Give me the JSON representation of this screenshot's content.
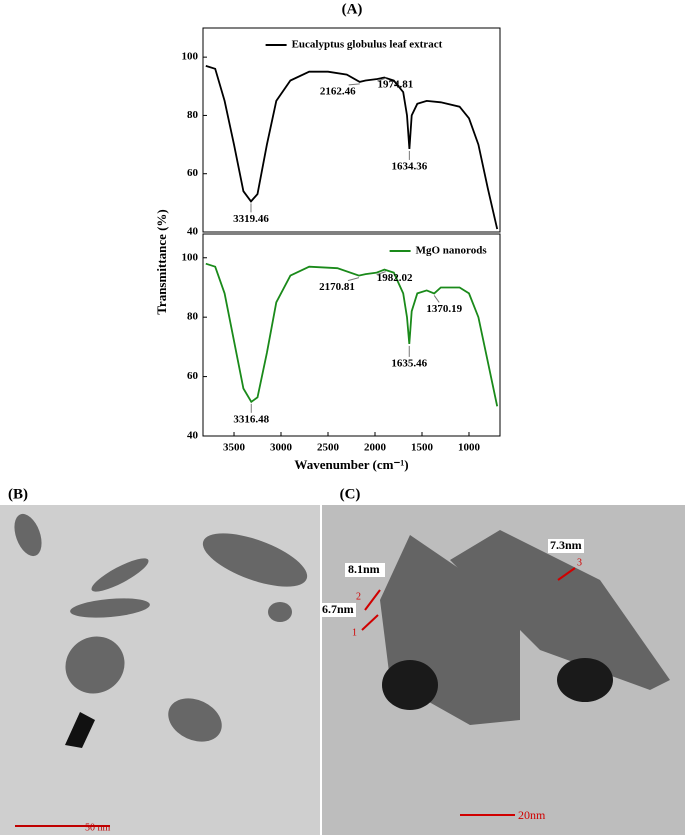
{
  "figure": {
    "panel_a": "(A)",
    "panel_b": "(B)",
    "panel_c": "(C)"
  },
  "chart_data": [
    {
      "type": "line",
      "ylabel": "Transmittance (%)",
      "xlim": [
        3830,
        670
      ],
      "ylim": [
        40,
        110
      ],
      "yticks": [
        40,
        60,
        80,
        100
      ],
      "legend": "top-right",
      "x": [
        3800,
        3700,
        3600,
        3500,
        3400,
        3319.46,
        3250,
        3150,
        3050,
        2900,
        2700,
        2500,
        2300,
        2162.46,
        2100,
        1974.81,
        1900,
        1800,
        1700,
        1660,
        1634.36,
        1610,
        1550,
        1450,
        1300,
        1100,
        1000,
        900,
        800,
        700
      ],
      "series": [
        {
          "name": "Eucalyptus globulus leaf extract",
          "color": "#000000",
          "values": [
            97,
            96,
            85,
            70,
            54,
            50.5,
            53,
            70,
            85,
            92,
            95,
            95,
            94,
            91.5,
            92,
            92.5,
            93,
            92,
            88,
            80,
            68.5,
            80,
            84,
            85,
            84.5,
            83,
            79,
            70,
            55,
            41
          ]
        }
      ],
      "annotations": [
        "3319.46",
        "2162.46",
        "1974.81",
        "1634.36"
      ]
    },
    {
      "type": "line",
      "xlabel": "Wavenumber (cm⁻¹)",
      "xlim": [
        3830,
        670
      ],
      "ylim": [
        40,
        108
      ],
      "xticks": [
        3500,
        3000,
        2500,
        2000,
        1500,
        1000
      ],
      "yticks": [
        40,
        60,
        80,
        100
      ],
      "legend": "top-right",
      "x": [
        3800,
        3700,
        3600,
        3500,
        3400,
        3316.48,
        3250,
        3150,
        3050,
        2900,
        2700,
        2400,
        2170.81,
        2100,
        1982.02,
        1900,
        1800,
        1700,
        1660,
        1635.46,
        1610,
        1550,
        1450,
        1370.19,
        1300,
        1100,
        1000,
        900,
        800,
        700
      ],
      "series": [
        {
          "name": "MgO nanorods",
          "color": "#1a8a1a",
          "values": [
            98,
            97,
            88,
            72,
            56,
            51.5,
            53,
            68,
            85,
            94,
            97,
            96.5,
            94,
            94.5,
            95,
            96,
            95,
            88,
            80,
            71,
            82,
            88,
            89,
            88,
            90,
            90,
            88,
            80,
            65,
            50
          ]
        }
      ],
      "annotations": [
        "3316.48",
        "2170.81",
        "1982.02",
        "1635.46",
        "1370.19"
      ]
    }
  ],
  "tem_b": {
    "scale_bar": "50 nm"
  },
  "tem_c": {
    "scale_bar": "20nm",
    "measures": [
      "8.1nm",
      "6.7nm",
      "7.3nm"
    ],
    "markers": [
      "1",
      "2",
      "3"
    ]
  }
}
